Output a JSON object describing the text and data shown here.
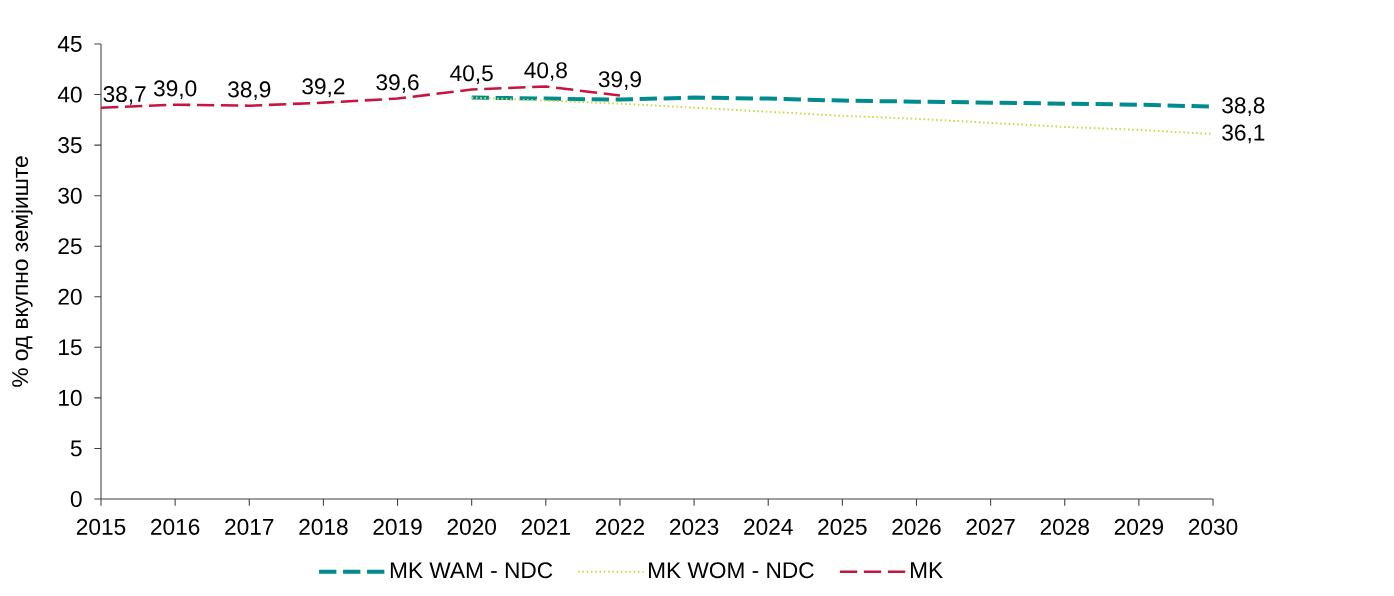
{
  "chart_data": {
    "type": "line",
    "ylabel": "% од вкупно земјиште",
    "xlim": [
      2015,
      2030
    ],
    "ylim": [
      0,
      45
    ],
    "xticks": [
      2015,
      2016,
      2017,
      2018,
      2019,
      2020,
      2021,
      2022,
      2023,
      2024,
      2025,
      2026,
      2027,
      2028,
      2029,
      2030
    ],
    "yticks": [
      0,
      5,
      10,
      15,
      20,
      25,
      30,
      35,
      40,
      45
    ],
    "legend": "bottom",
    "series": [
      {
        "name": "MK WAM - NDC",
        "color": "#008B8F",
        "line_style": "dashed",
        "x": [
          2020,
          2021,
          2022,
          2023,
          2024,
          2025,
          2026,
          2027,
          2028,
          2029,
          2030
        ],
        "values": [
          39.7,
          39.6,
          39.5,
          39.7,
          39.6,
          39.4,
          39.3,
          39.2,
          39.1,
          39.0,
          38.8
        ],
        "value_labels": [
          null,
          null,
          null,
          null,
          null,
          null,
          null,
          null,
          null,
          null,
          "38,8"
        ]
      },
      {
        "name": "MK WOM - NDC",
        "color": "#C9DB45",
        "line_style": "dotted",
        "x": [
          2020,
          2021,
          2022,
          2023,
          2024,
          2025,
          2026,
          2027,
          2028,
          2029,
          2030
        ],
        "values": [
          39.7,
          39.4,
          39.1,
          38.7,
          38.3,
          37.9,
          37.6,
          37.2,
          36.8,
          36.5,
          36.1
        ],
        "value_labels": [
          null,
          null,
          null,
          null,
          null,
          null,
          null,
          null,
          null,
          null,
          "36,1"
        ]
      },
      {
        "name": "MK",
        "color": "#C8143F",
        "line_style": "dashed",
        "x": [
          2015,
          2016,
          2017,
          2018,
          2019,
          2020,
          2021,
          2022
        ],
        "values": [
          38.7,
          39.0,
          38.9,
          39.2,
          39.6,
          40.5,
          40.8,
          39.9
        ],
        "value_labels": [
          "38,7",
          "39,0",
          "38,9",
          "39,2",
          "39,6",
          "40,5",
          "40,8",
          "39,9"
        ]
      }
    ]
  }
}
